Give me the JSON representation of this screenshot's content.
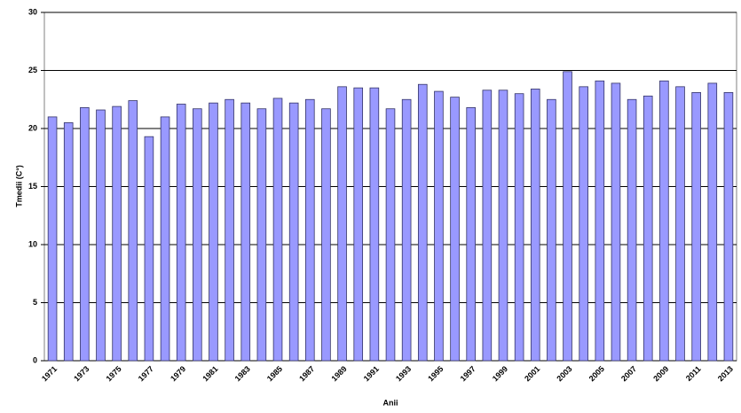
{
  "chart_data": {
    "type": "bar",
    "x_label": "Anii",
    "y_label": "Tmedii (C°)",
    "categories": [
      "1971",
      null,
      "1973",
      null,
      "1975",
      null,
      "1977",
      null,
      "1979",
      null,
      "1981",
      null,
      "1983",
      null,
      "1985",
      null,
      "1987",
      null,
      "1989",
      null,
      "1991",
      null,
      "1993",
      null,
      "1995",
      null,
      "1997",
      null,
      "1999",
      null,
      "2001",
      null,
      "2003",
      null,
      "2005",
      null,
      "2007",
      null,
      "2009",
      null,
      "2011",
      null,
      "2013"
    ],
    "values": [
      21.0,
      20.5,
      21.8,
      21.6,
      21.9,
      22.4,
      19.3,
      21.0,
      22.1,
      21.7,
      22.2,
      22.5,
      22.2,
      21.7,
      22.6,
      22.2,
      22.5,
      21.7,
      23.6,
      23.5,
      23.5,
      21.7,
      22.5,
      23.8,
      23.2,
      22.7,
      21.8,
      23.3,
      23.3,
      23.0,
      23.4,
      22.5,
      24.9,
      23.6,
      24.1,
      23.9,
      22.5,
      22.8,
      24.1,
      23.6,
      23.1,
      23.9,
      23.1
    ],
    "color": "#9999ff",
    "ylim": [
      0,
      30
    ],
    "yticks": [
      0,
      5,
      10,
      15,
      20,
      25,
      30
    ],
    "grid": true
  }
}
